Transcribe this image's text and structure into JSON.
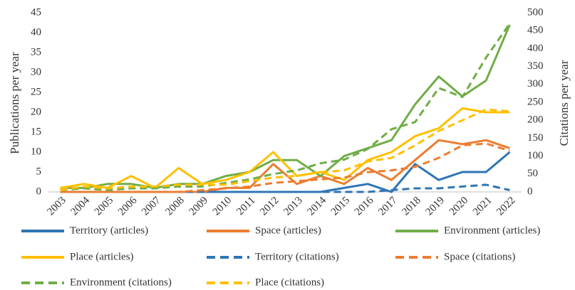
{
  "chart_data": {
    "type": "line",
    "y_label": "Publications per year",
    "y2_label": "Citations per year",
    "categories": [
      "2003",
      "2004",
      "2005",
      "2006",
      "2007",
      "2008",
      "2009",
      "2010",
      "2011",
      "2012",
      "2013",
      "2014",
      "2015",
      "2016",
      "2017",
      "2018",
      "2019",
      "2020",
      "2021",
      "2022"
    ],
    "ylim": [
      0,
      45
    ],
    "yticks": [
      0,
      5,
      10,
      15,
      20,
      25,
      30,
      35,
      40,
      45
    ],
    "y2lim": [
      0,
      500
    ],
    "y2ticks": [
      0,
      50,
      100,
      150,
      200,
      250,
      300,
      350,
      400,
      450,
      500
    ],
    "series": [
      {
        "name": "Territory (articles)",
        "color": "#2e75b6",
        "values": [
          0,
          0,
          0,
          0,
          0,
          0,
          0,
          0,
          0,
          0,
          0,
          0,
          1,
          2,
          0,
          7,
          3,
          5,
          5,
          10
        ]
      },
      {
        "name": "Space (articles)",
        "color": "#ed7d31",
        "values": [
          0,
          0,
          0,
          0,
          0,
          0,
          0,
          1,
          1,
          7,
          2,
          4,
          2,
          6,
          3,
          8,
          13,
          12,
          13,
          11
        ]
      },
      {
        "name": "Environment (articles)",
        "color": "#70ad47",
        "values": [
          1,
          1,
          2,
          2,
          1,
          2,
          2,
          4,
          5,
          8,
          8,
          4,
          9,
          11,
          13,
          22,
          29,
          24,
          28,
          42
        ]
      },
      {
        "name": "Place (articles)",
        "color": "#ffc000",
        "values": [
          1,
          2,
          1,
          4,
          1,
          6,
          2,
          3,
          5,
          10,
          4,
          5,
          3,
          8,
          10,
          14,
          16,
          21,
          20,
          20
        ]
      },
      {
        "name": "Territory (citations)",
        "color": "#2e75b6",
        "axis": "y2",
        "values": [
          0,
          0,
          0,
          0,
          0,
          0,
          0,
          0,
          0,
          0,
          0,
          0,
          0,
          0,
          5,
          10,
          10,
          15,
          20,
          5
        ]
      },
      {
        "name": "Space (citations)",
        "color": "#ed7d31",
        "axis": "y2",
        "values": [
          0,
          0,
          0,
          0,
          0,
          0,
          5,
          10,
          15,
          25,
          30,
          35,
          40,
          55,
          60,
          70,
          95,
          130,
          135,
          115
        ]
      },
      {
        "name": "Environment (citations)",
        "color": "#70ad47",
        "axis": "y2",
        "values": [
          5,
          10,
          5,
          10,
          10,
          15,
          15,
          25,
          35,
          50,
          60,
          80,
          90,
          120,
          175,
          195,
          290,
          265,
          375,
          470
        ]
      },
      {
        "name": "Place (citations)",
        "color": "#ffc000",
        "axis": "y2",
        "values": [
          5,
          15,
          10,
          15,
          15,
          20,
          20,
          20,
          30,
          40,
          45,
          55,
          60,
          85,
          95,
          130,
          170,
          200,
          230,
          225
        ]
      }
    ]
  }
}
